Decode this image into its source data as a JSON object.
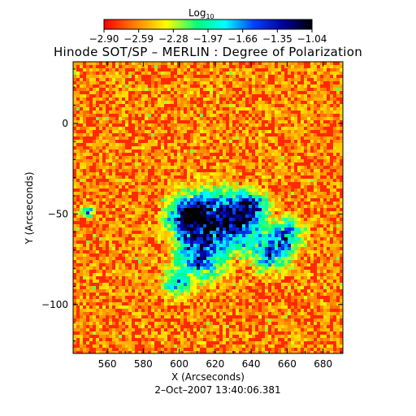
{
  "chart_data": {
    "type": "heatmap",
    "title": "Hinode SOT/SP – MERLIN : Degree of Polarization",
    "subtitle": "2–Oct–2007 13:40:06.381",
    "xlabel": "X (Arcseconds)",
    "ylabel": "Y (Arcseconds)",
    "xlim": [
      541,
      691
    ],
    "ylim": [
      -127,
      34
    ],
    "x_ticks": [
      560,
      580,
      600,
      620,
      640,
      660,
      680
    ],
    "y_ticks": [
      0,
      -50,
      -100
    ],
    "x_tick_labels": [
      "560",
      "580",
      "600",
      "620",
      "640",
      "660",
      "680"
    ],
    "y_tick_labels": [
      "0",
      "−50",
      "−100"
    ],
    "colorbar": {
      "label_base": "Log",
      "label_sub": "10",
      "range": [
        -2.9,
        -1.04
      ],
      "ticks": [
        "−2.90",
        "−2.59",
        "−2.28",
        "−1.97",
        "−1.66",
        "−1.35",
        "−1.04"
      ],
      "colormap": [
        "#ff0000",
        "#ff8000",
        "#ffff00",
        "#00ff80",
        "#00ffff",
        "#0040ff",
        "#0000a0",
        "#000000"
      ]
    },
    "grid": false
  }
}
